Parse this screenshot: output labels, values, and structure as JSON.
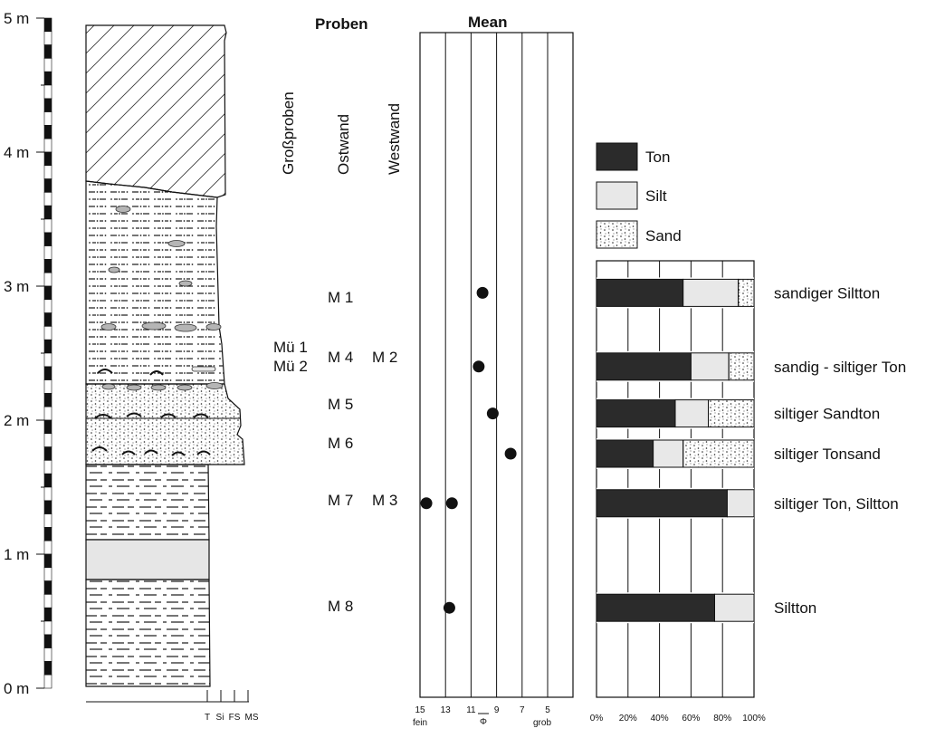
{
  "headers": {
    "proben": "Proben",
    "mean": "Mean"
  },
  "sample_groups": [
    "Großproben",
    "Ostwand",
    "Westwand"
  ],
  "scale": {
    "ticks": [
      "0 m",
      "1 m",
      "2 m",
      "3 m",
      "4 m",
      "5 m"
    ]
  },
  "grain_axis": {
    "labels": [
      "T",
      "Si",
      "FS",
      "MS"
    ]
  },
  "phi_axis": {
    "ticks": [
      "15",
      "13",
      "11",
      "9",
      "7",
      "5"
    ],
    "fine_label": "fein",
    "coarse_label": "grob",
    "symbol": "Φ"
  },
  "pct_axis": {
    "ticks": [
      "0%",
      "20%",
      "40%",
      "60%",
      "80%",
      "100%"
    ]
  },
  "legend": [
    {
      "label": "Ton",
      "fill": "#2b2b2b"
    },
    {
      "label": "Silt",
      "fill": "#e8e8e8"
    },
    {
      "label": "Sand",
      "fill": "dots"
    }
  ],
  "samples": [
    {
      "gross": "",
      "ost": "M 1",
      "west": "",
      "classification": "sandiger Siltton"
    },
    {
      "gross": "Mü 1\nMü 2",
      "ost": "M 4",
      "west": "M 2",
      "classification": "sandig - siltiger Ton"
    },
    {
      "gross": "",
      "ost": "M 5",
      "west": "",
      "classification": "siltiger Sandton"
    },
    {
      "gross": "",
      "ost": "M 6",
      "west": "",
      "classification": "siltiger Tonsand"
    },
    {
      "gross": "",
      "ost": "M 7",
      "west": "M 3",
      "classification": "siltiger Ton, Siltton"
    },
    {
      "gross": "",
      "ost": "M 8",
      "west": "",
      "classification": "Siltton"
    }
  ],
  "chart_data": [
    {
      "type": "scatter",
      "title": "Mean",
      "xlabel": "Φ",
      "x_unit": "phi",
      "xlim": [
        15,
        3
      ],
      "y_unit": "m",
      "ylim": [
        0,
        5
      ],
      "points": [
        {
          "label": "M 1",
          "depth_m": 2.95,
          "phi": 10.1
        },
        {
          "label": "M 4 / M 2",
          "depth_m": 2.4,
          "phi": 10.4
        },
        {
          "label": "M 5",
          "depth_m": 2.05,
          "phi": 9.3
        },
        {
          "label": "M 6",
          "depth_m": 1.75,
          "phi": 7.9
        },
        {
          "label": "M 7",
          "depth_m": 1.38,
          "phi": 14.5
        },
        {
          "label": "M 3",
          "depth_m": 1.38,
          "phi": 12.5
        },
        {
          "label": "M 8",
          "depth_m": 0.6,
          "phi": 12.7
        }
      ]
    },
    {
      "type": "bar",
      "orientation": "horizontal",
      "stacked": true,
      "xlim": [
        0,
        100
      ],
      "x_unit": "%",
      "categories": [
        "sandiger Siltton",
        "sandig - siltiger Ton",
        "siltiger Sandton",
        "siltiger Tonsand",
        "siltiger Ton, Siltton",
        "Siltton"
      ],
      "depth_m": [
        2.95,
        2.4,
        2.05,
        1.75,
        1.38,
        0.6
      ],
      "series": [
        {
          "name": "Ton",
          "values": [
            55,
            60,
            50,
            36,
            83,
            75
          ]
        },
        {
          "name": "Silt",
          "values": [
            35,
            24,
            21,
            19,
            17,
            25
          ]
        },
        {
          "name": "Sand",
          "values": [
            10,
            16,
            29,
            45,
            0,
            0
          ]
        }
      ]
    }
  ]
}
